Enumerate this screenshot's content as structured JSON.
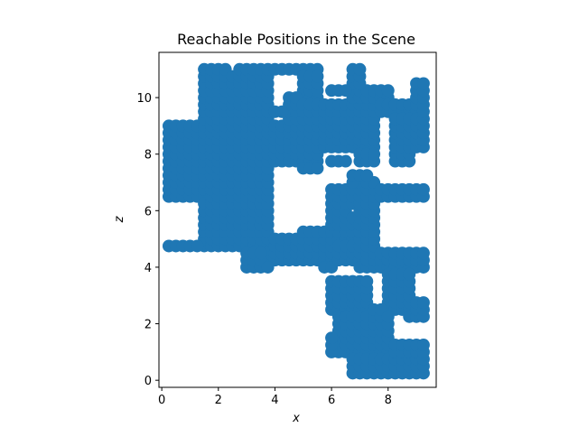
{
  "chart_data": {
    "type": "scatter",
    "title": "Reachable Positions in the Scene",
    "xlabel": "x",
    "ylabel": "z",
    "xlim": [
      -0.1,
      9.7
    ],
    "ylim": [
      -0.25,
      11.6
    ],
    "xticks": [
      0,
      2,
      4,
      6,
      8
    ],
    "yticks": [
      0,
      2,
      4,
      6,
      8,
      10
    ],
    "grid": false,
    "legend": "none",
    "grid_step": 0.25,
    "series": [
      {
        "color": "#1f77b4",
        "regions": [
          {
            "x": [
              0.25,
              1.5
            ],
            "z": [
              6.5,
              9.0
            ]
          },
          {
            "x": [
              1.5,
              3.75
            ],
            "z": [
              4.75,
              10.0
            ]
          },
          {
            "x": [
              1.5,
              2.25
            ],
            "z": [
              10.0,
              11.0
            ]
          },
          {
            "x": [
              2.25,
              2.75
            ],
            "z": [
              10.0,
              10.75
            ]
          },
          {
            "x": [
              2.75,
              3.75
            ],
            "z": [
              10.0,
              11.0
            ]
          },
          {
            "x": [
              0.25,
              1.5
            ],
            "z": [
              4.75,
              4.75
            ]
          },
          {
            "x": [
              3.75,
              5.5
            ],
            "z": [
              7.75,
              9.0
            ]
          },
          {
            "x": [
              5.0,
              5.5
            ],
            "z": [
              7.5,
              7.75
            ]
          },
          {
            "x": [
              4.0,
              5.5
            ],
            "z": [
              11.0,
              11.0
            ]
          },
          {
            "x": [
              5.0,
              5.5
            ],
            "z": [
              10.0,
              11.0
            ]
          },
          {
            "x": [
              4.5,
              5.5
            ],
            "z": [
              9.25,
              10.0
            ]
          },
          {
            "x": [
              4.0,
              4.25
            ],
            "z": [
              9.5,
              9.5
            ]
          },
          {
            "x": [
              5.5,
              7.5
            ],
            "z": [
              8.25,
              9.75
            ]
          },
          {
            "x": [
              6.75,
              7.25
            ],
            "z": [
              9.75,
              10.25
            ]
          },
          {
            "x": [
              6.75,
              7.0
            ],
            "z": [
              10.25,
              11.0
            ]
          },
          {
            "x": [
              6.0,
              6.5
            ],
            "z": [
              10.25,
              10.25
            ]
          },
          {
            "x": [
              7.25,
              8.0
            ],
            "z": [
              10.0,
              10.25
            ]
          },
          {
            "x": [
              7.0,
              7.5
            ],
            "z": [
              7.75,
              8.25
            ]
          },
          {
            "x": [
              6.0,
              6.5
            ],
            "z": [
              7.75,
              7.75
            ]
          },
          {
            "x": [
              7.75,
              9.0
            ],
            "z": [
              9.5,
              9.75
            ]
          },
          {
            "x": [
              8.25,
              8.75
            ],
            "z": [
              7.75,
              9.5
            ]
          },
          {
            "x": [
              9.0,
              9.25
            ],
            "z": [
              8.25,
              10.5
            ]
          },
          {
            "x": [
              8.75,
              9.0
            ],
            "z": [
              8.5,
              9.0
            ]
          },
          {
            "x": [
              3.75,
              6.0
            ],
            "z": [
              4.25,
              5.0
            ]
          },
          {
            "x": [
              3.0,
              3.75
            ],
            "z": [
              4.0,
              4.75
            ]
          },
          {
            "x": [
              5.0,
              6.75
            ],
            "z": [
              5.0,
              5.25
            ]
          },
          {
            "x": [
              5.75,
              6.0
            ],
            "z": [
              4.0,
              4.25
            ]
          },
          {
            "x": [
              6.0,
              7.0
            ],
            "z": [
              4.25,
              6.75
            ]
          },
          {
            "x": [
              7.0,
              7.5
            ],
            "z": [
              4.0,
              7.0
            ]
          },
          {
            "x": [
              6.75,
              7.25
            ],
            "z": [
              7.0,
              7.25
            ]
          },
          {
            "x": [
              7.5,
              9.25
            ],
            "z": [
              6.5,
              6.75
            ]
          },
          {
            "x": [
              7.5,
              9.25
            ],
            "z": [
              4.0,
              4.5
            ]
          },
          {
            "x": [
              8.0,
              8.75
            ],
            "z": [
              2.5,
              4.0
            ]
          },
          {
            "x": [
              8.75,
              9.25
            ],
            "z": [
              2.25,
              2.75
            ]
          },
          {
            "x": [
              6.0,
              7.25
            ],
            "z": [
              2.5,
              3.5
            ]
          },
          {
            "x": [
              6.25,
              8.0
            ],
            "z": [
              1.0,
              2.5
            ]
          },
          {
            "x": [
              6.0,
              6.25
            ],
            "z": [
              1.0,
              1.5
            ]
          },
          {
            "x": [
              6.75,
              8.0
            ],
            "z": [
              0.25,
              1.0
            ]
          },
          {
            "x": [
              8.0,
              9.25
            ],
            "z": [
              0.25,
              1.25
            ]
          }
        ],
        "holes": [
          {
            "x": 6.75,
            "z": 6.0
          }
        ]
      }
    ]
  }
}
